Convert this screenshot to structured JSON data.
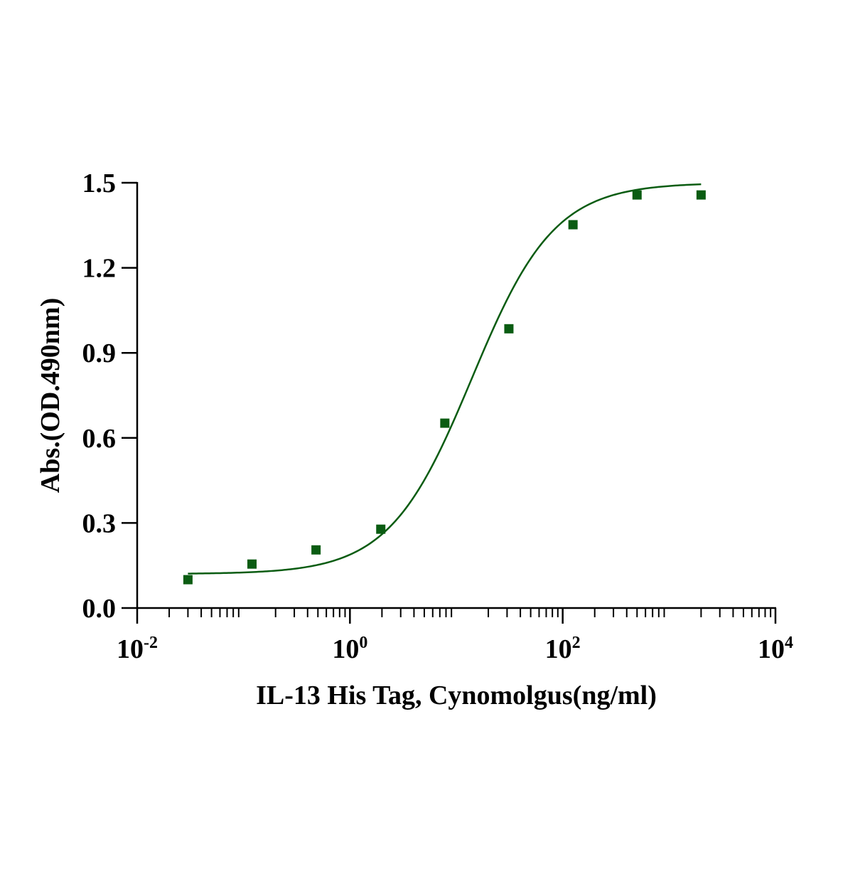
{
  "chart_data": {
    "type": "scatter",
    "title": "",
    "xlabel": "IL-13 His Tag, Cynomolgus(ng/ml)",
    "ylabel": "Abs.(OD.490nm)",
    "x_scale": "log",
    "xlim": [
      0.01,
      10000
    ],
    "ylim": [
      0,
      1.5
    ],
    "x_ticks": [
      {
        "value": 0.01,
        "base": "10",
        "exp": "-2"
      },
      {
        "value": 1,
        "base": "10",
        "exp": "0"
      },
      {
        "value": 100,
        "base": "10",
        "exp": "2"
      },
      {
        "value": 10000,
        "base": "10",
        "exp": "4"
      }
    ],
    "y_ticks": [
      "0.0",
      "0.3",
      "0.6",
      "0.9",
      "1.2",
      "1.5"
    ],
    "grid": false,
    "legend": "none",
    "colors": {
      "points": "#0a5c12",
      "curve": "#0a5c12",
      "axis": "#000000"
    },
    "series": [
      {
        "x": [
          0.03,
          0.12,
          0.48,
          1.95,
          7.8,
          31.2,
          125,
          500,
          2000
        ],
        "y": [
          0.1,
          0.155,
          0.205,
          0.278,
          0.652,
          0.985,
          1.352,
          1.457,
          1.457
        ]
      }
    ],
    "fit": {
      "model": "4PL",
      "bottom": 0.12,
      "top": 1.5,
      "ec50": 14,
      "hill": 1.12,
      "x_range": [
        0.03,
        2000
      ]
    }
  }
}
